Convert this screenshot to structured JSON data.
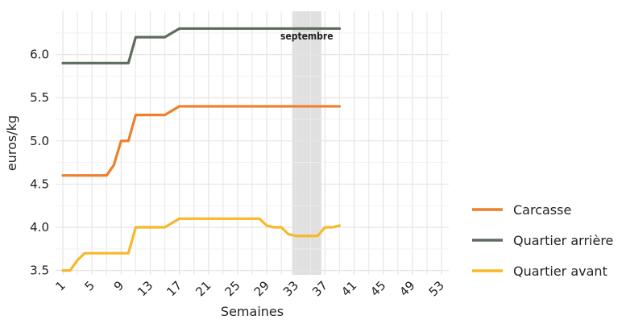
{
  "chart_data": {
    "type": "line",
    "xlabel": "Semaines",
    "ylabel": "euros/kg",
    "xlim": [
      0,
      54
    ],
    "ylim": [
      3.45,
      6.5
    ],
    "x_ticks": [
      1,
      5,
      9,
      13,
      17,
      21,
      25,
      29,
      33,
      37,
      41,
      45,
      49,
      53
    ],
    "y_ticks": [
      3.5,
      4.0,
      4.5,
      5.0,
      5.5,
      6.0
    ],
    "y_tick_labels": [
      "3.5",
      "4.0",
      "4.5",
      "5.0",
      "5.5",
      "6.0"
    ],
    "grid": true,
    "legend_position": "right",
    "highlight": {
      "label": "septembre",
      "x_start": 32.5,
      "x_end": 36.5,
      "color": "#e0e0e0"
    },
    "series": [
      {
        "name": "Carcasse",
        "color": "#ef7f2b",
        "points": [
          [
            1,
            4.6
          ],
          [
            2,
            4.6
          ],
          [
            3,
            4.6
          ],
          [
            4,
            4.6
          ],
          [
            5,
            4.6
          ],
          [
            6,
            4.6
          ],
          [
            7,
            4.6
          ],
          [
            8,
            4.72
          ],
          [
            9,
            5.0
          ],
          [
            10,
            5.0
          ],
          [
            11,
            5.3
          ],
          [
            12,
            5.3
          ],
          [
            13,
            5.3
          ],
          [
            14,
            5.3
          ],
          [
            15,
            5.3
          ],
          [
            16,
            5.35
          ],
          [
            17,
            5.4
          ],
          [
            18,
            5.4
          ],
          [
            19,
            5.4
          ],
          [
            20,
            5.4
          ],
          [
            21,
            5.4
          ],
          [
            22,
            5.4
          ],
          [
            23,
            5.4
          ],
          [
            24,
            5.4
          ],
          [
            25,
            5.4
          ],
          [
            26,
            5.4
          ],
          [
            27,
            5.4
          ],
          [
            28,
            5.4
          ],
          [
            29,
            5.4
          ],
          [
            30,
            5.4
          ],
          [
            31,
            5.4
          ],
          [
            32,
            5.4
          ],
          [
            33,
            5.4
          ],
          [
            34,
            5.4
          ],
          [
            35,
            5.4
          ],
          [
            36,
            5.4
          ],
          [
            37,
            5.4
          ],
          [
            38,
            5.4
          ],
          [
            39,
            5.4
          ]
        ]
      },
      {
        "name": "Quartier arrière",
        "color": "#5e6b5f",
        "points": [
          [
            1,
            5.9
          ],
          [
            2,
            5.9
          ],
          [
            3,
            5.9
          ],
          [
            4,
            5.9
          ],
          [
            5,
            5.9
          ],
          [
            6,
            5.9
          ],
          [
            7,
            5.9
          ],
          [
            8,
            5.9
          ],
          [
            9,
            5.9
          ],
          [
            10,
            5.9
          ],
          [
            11,
            6.2
          ],
          [
            12,
            6.2
          ],
          [
            13,
            6.2
          ],
          [
            14,
            6.2
          ],
          [
            15,
            6.2
          ],
          [
            16,
            6.25
          ],
          [
            17,
            6.3
          ],
          [
            18,
            6.3
          ],
          [
            19,
            6.3
          ],
          [
            20,
            6.3
          ],
          [
            21,
            6.3
          ],
          [
            22,
            6.3
          ],
          [
            23,
            6.3
          ],
          [
            24,
            6.3
          ],
          [
            25,
            6.3
          ],
          [
            26,
            6.3
          ],
          [
            27,
            6.3
          ],
          [
            28,
            6.3
          ],
          [
            29,
            6.3
          ],
          [
            30,
            6.3
          ],
          [
            31,
            6.3
          ],
          [
            32,
            6.3
          ],
          [
            33,
            6.3
          ],
          [
            34,
            6.3
          ],
          [
            35,
            6.3
          ],
          [
            36,
            6.3
          ],
          [
            37,
            6.3
          ],
          [
            38,
            6.3
          ],
          [
            39,
            6.3
          ]
        ]
      },
      {
        "name": "Quartier avant",
        "color": "#f7b829",
        "points": [
          [
            1,
            3.5
          ],
          [
            2,
            3.5
          ],
          [
            3,
            3.62
          ],
          [
            4,
            3.7
          ],
          [
            5,
            3.7
          ],
          [
            6,
            3.7
          ],
          [
            7,
            3.7
          ],
          [
            8,
            3.7
          ],
          [
            9,
            3.7
          ],
          [
            10,
            3.7
          ],
          [
            11,
            4.0
          ],
          [
            12,
            4.0
          ],
          [
            13,
            4.0
          ],
          [
            14,
            4.0
          ],
          [
            15,
            4.0
          ],
          [
            16,
            4.05
          ],
          [
            17,
            4.1
          ],
          [
            18,
            4.1
          ],
          [
            19,
            4.1
          ],
          [
            20,
            4.1
          ],
          [
            21,
            4.1
          ],
          [
            22,
            4.1
          ],
          [
            23,
            4.1
          ],
          [
            24,
            4.1
          ],
          [
            25,
            4.1
          ],
          [
            26,
            4.1
          ],
          [
            27,
            4.1
          ],
          [
            28,
            4.1
          ],
          [
            29,
            4.02
          ],
          [
            30,
            4.0
          ],
          [
            31,
            4.0
          ],
          [
            32,
            3.92
          ],
          [
            33,
            3.9
          ],
          [
            34,
            3.9
          ],
          [
            35,
            3.9
          ],
          [
            36,
            3.9
          ],
          [
            37,
            4.0
          ],
          [
            38,
            4.0
          ],
          [
            39,
            4.02
          ]
        ]
      }
    ]
  }
}
